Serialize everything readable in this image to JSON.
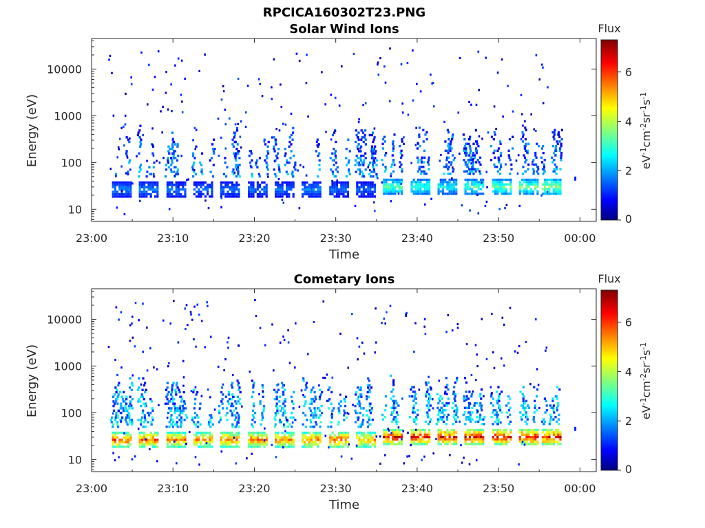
{
  "figure": {
    "title": "RPCICA160302T23.PNG"
  },
  "chart_data": [
    {
      "type": "heatmap",
      "title": "Solar Wind Ions",
      "xlabel": "Time",
      "ylabel": "Energy (eV)",
      "x_ticks": [
        "23:00",
        "23:10",
        "23:20",
        "23:30",
        "23:40",
        "23:50",
        "00:00"
      ],
      "y_ticks": [
        "10",
        "100",
        "1000",
        "10000"
      ],
      "y_scale": "log",
      "ylim": [
        5.5,
        45000
      ],
      "xlim_minutes": [
        0,
        62
      ],
      "colorbar": {
        "title": "Flux",
        "label": "eV-1cm-2sr-1s-1",
        "ticks": [
          "0",
          "2",
          "4",
          "6"
        ],
        "range": [
          0,
          7.3
        ]
      },
      "scan_minutes": [
        2.5,
        5.8,
        9.2,
        12.5,
        15.8,
        19.2,
        22.5,
        25.8,
        29.2,
        32.5,
        35.8,
        39.2,
        42.5,
        45.8,
        49.2,
        52.5,
        55.3
      ],
      "scan_peak_energy_ev": [
        28,
        28,
        28,
        28,
        28,
        28,
        28,
        28,
        28,
        28,
        32,
        32,
        32,
        32,
        32,
        32,
        32
      ],
      "scan_peak_flux": [
        2.0,
        2.0,
        1.9,
        1.8,
        1.8,
        1.8,
        1.8,
        2.0,
        1.8,
        1.7,
        3.6,
        3.4,
        3.0,
        3.4,
        3.8,
        3.8,
        4.2
      ]
    },
    {
      "type": "heatmap",
      "title": "Cometary Ions",
      "xlabel": "Time",
      "ylabel": "Energy (eV)",
      "x_ticks": [
        "23:00",
        "23:10",
        "23:20",
        "23:30",
        "23:40",
        "23:50",
        "00:00"
      ],
      "y_ticks": [
        "10",
        "100",
        "1000",
        "10000"
      ],
      "y_scale": "log",
      "ylim": [
        5.5,
        45000
      ],
      "xlim_minutes": [
        0,
        62
      ],
      "colorbar": {
        "title": "Flux",
        "label": "eV-1cm-2sr-1s-1",
        "ticks": [
          "0",
          "2",
          "4",
          "6"
        ],
        "range": [
          0,
          7.3
        ]
      },
      "scan_minutes": [
        2.5,
        5.8,
        9.2,
        12.5,
        15.8,
        19.2,
        22.5,
        25.8,
        29.2,
        32.5,
        35.8,
        39.2,
        42.5,
        45.8,
        49.2,
        52.5,
        55.3
      ],
      "scan_peak_energy_ev": [
        28,
        28,
        28,
        28,
        28,
        28,
        28,
        28,
        28,
        28,
        32,
        32,
        32,
        32,
        32,
        32,
        32
      ],
      "scan_peak_flux": [
        6.2,
        6.2,
        6.0,
        5.8,
        6.0,
        6.0,
        5.8,
        6.0,
        6.2,
        5.8,
        6.8,
        6.8,
        6.8,
        6.8,
        6.8,
        6.8,
        6.8
      ]
    }
  ]
}
